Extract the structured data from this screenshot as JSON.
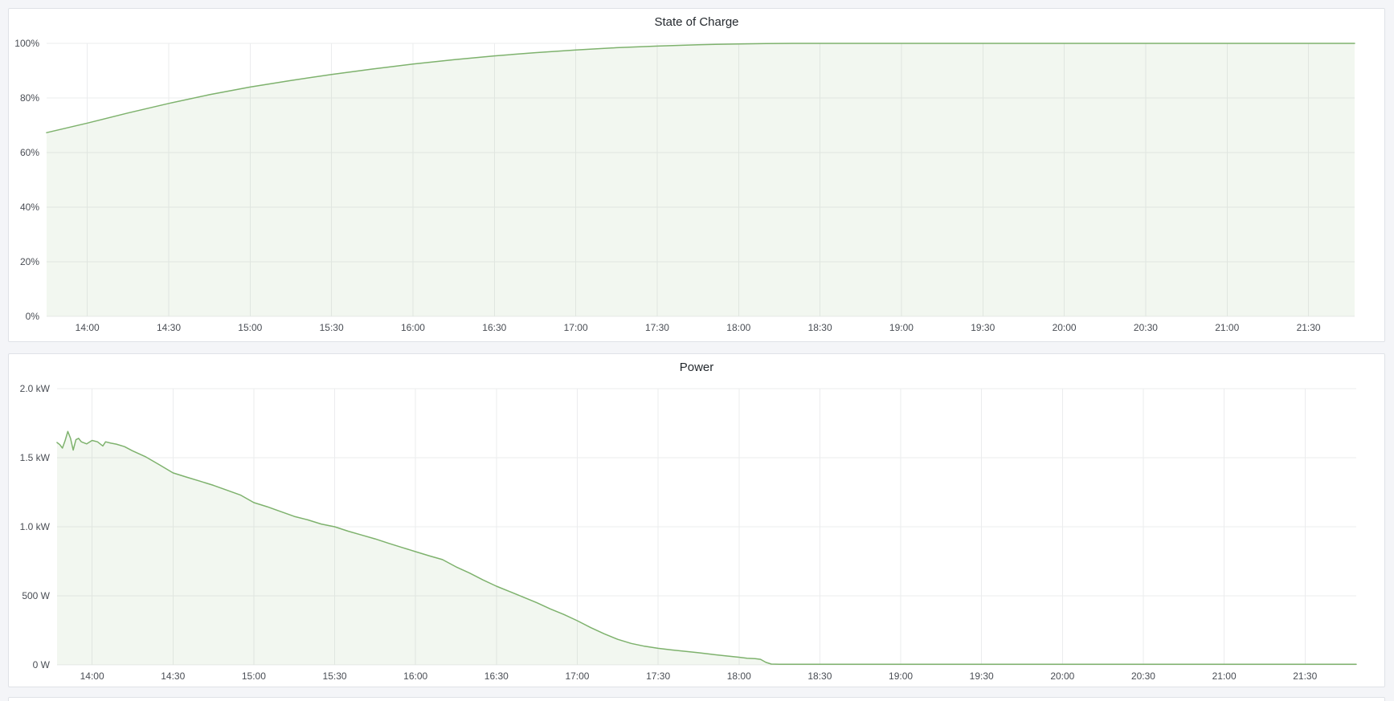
{
  "colors": {
    "series_green": "#7eb26d",
    "page_background": "#f4f5f8",
    "panel_background": "#ffffff",
    "panel_border": "#dfe2e7",
    "grid_line": "#ebecee",
    "tick_text": "#494d54",
    "title_text": "#24292e"
  },
  "chart_data": [
    {
      "type": "area",
      "title": "State of Charge",
      "xlabel": "",
      "ylabel": "",
      "x_range": [
        "13:45",
        "21:47"
      ],
      "ylim": [
        0,
        100
      ],
      "grid": true,
      "legend_position": "none",
      "x_ticks": [
        "14:00",
        "14:30",
        "15:00",
        "15:30",
        "16:00",
        "16:30",
        "17:00",
        "17:30",
        "18:00",
        "18:30",
        "19:00",
        "19:30",
        "20:00",
        "20:30",
        "21:00",
        "21:30"
      ],
      "y_ticks": [
        {
          "label": "0%",
          "value": 0
        },
        {
          "label": "20%",
          "value": 20
        },
        {
          "label": "40%",
          "value": 40
        },
        {
          "label": "60%",
          "value": 60
        },
        {
          "label": "80%",
          "value": 80
        },
        {
          "label": "100%",
          "value": 100
        }
      ],
      "series": [
        {
          "name": "State of Charge",
          "color": "#7eb26d",
          "fill_opacity": 0.1,
          "points": [
            [
              "13:45",
              67.3
            ],
            [
              "14:00",
              70.8
            ],
            [
              "14:15",
              74.5
            ],
            [
              "14:30",
              78.0
            ],
            [
              "14:45",
              81.2
            ],
            [
              "15:00",
              84.0
            ],
            [
              "15:15",
              86.4
            ],
            [
              "15:30",
              88.6
            ],
            [
              "15:45",
              90.6
            ],
            [
              "16:00",
              92.4
            ],
            [
              "16:15",
              94.0
            ],
            [
              "16:30",
              95.4
            ],
            [
              "16:45",
              96.6
            ],
            [
              "17:00",
              97.6
            ],
            [
              "17:15",
              98.4
            ],
            [
              "17:30",
              99.0
            ],
            [
              "17:45",
              99.5
            ],
            [
              "18:00",
              99.8
            ],
            [
              "18:10",
              99.9
            ],
            [
              "18:20",
              100
            ],
            [
              "19:00",
              100
            ],
            [
              "20:00",
              100
            ],
            [
              "21:00",
              100
            ],
            [
              "21:47",
              100
            ]
          ]
        }
      ]
    },
    {
      "type": "area",
      "title": "Power",
      "xlabel": "",
      "ylabel": "",
      "x_range": [
        "13:47",
        "21:49"
      ],
      "ylim": [
        0,
        2000
      ],
      "grid": true,
      "legend_position": "none",
      "x_ticks": [
        "14:00",
        "14:30",
        "15:00",
        "15:30",
        "16:00",
        "16:30",
        "17:00",
        "17:30",
        "18:00",
        "18:30",
        "19:00",
        "19:30",
        "20:00",
        "20:30",
        "21:00",
        "21:30"
      ],
      "y_ticks": [
        {
          "label": "0 W",
          "value": 0
        },
        {
          "label": "500 W",
          "value": 500
        },
        {
          "label": "1.0 kW",
          "value": 1000
        },
        {
          "label": "1.5 kW",
          "value": 1500
        },
        {
          "label": "2.0 kW",
          "value": 2000
        }
      ],
      "series": [
        {
          "name": "Power",
          "color": "#7eb26d",
          "fill_opacity": 0.1,
          "points": [
            [
              "13:47",
              1610
            ],
            [
              "13:48",
              1595
            ],
            [
              "13:49",
              1570
            ],
            [
              "13:50",
              1625
            ],
            [
              "13:51",
              1690
            ],
            [
              "13:52",
              1640
            ],
            [
              "13:53",
              1555
            ],
            [
              "13:54",
              1630
            ],
            [
              "13:55",
              1640
            ],
            [
              "13:56",
              1615
            ],
            [
              "13:58",
              1600
            ],
            [
              "14:00",
              1625
            ],
            [
              "14:02",
              1615
            ],
            [
              "14:04",
              1585
            ],
            [
              "14:05",
              1615
            ],
            [
              "14:07",
              1605
            ],
            [
              "14:09",
              1598
            ],
            [
              "14:12",
              1580
            ],
            [
              "14:15",
              1550
            ],
            [
              "14:20",
              1505
            ],
            [
              "14:25",
              1448
            ],
            [
              "14:30",
              1390
            ],
            [
              "14:35",
              1360
            ],
            [
              "14:40",
              1330
            ],
            [
              "14:45",
              1300
            ],
            [
              "14:50",
              1265
            ],
            [
              "14:55",
              1230
            ],
            [
              "15:00",
              1175
            ],
            [
              "15:05",
              1145
            ],
            [
              "15:10",
              1110
            ],
            [
              "15:15",
              1075
            ],
            [
              "15:20",
              1050
            ],
            [
              "15:25",
              1020
            ],
            [
              "15:30",
              1000
            ],
            [
              "15:35",
              968
            ],
            [
              "15:40",
              940
            ],
            [
              "15:45",
              912
            ],
            [
              "15:50",
              880
            ],
            [
              "15:55",
              850
            ],
            [
              "16:00",
              820
            ],
            [
              "16:05",
              790
            ],
            [
              "16:10",
              762
            ],
            [
              "16:15",
              710
            ],
            [
              "16:20",
              665
            ],
            [
              "16:25",
              615
            ],
            [
              "16:30",
              570
            ],
            [
              "16:35",
              530
            ],
            [
              "16:40",
              490
            ],
            [
              "16:45",
              450
            ],
            [
              "16:50",
              405
            ],
            [
              "16:55",
              365
            ],
            [
              "17:00",
              320
            ],
            [
              "17:05",
              270
            ],
            [
              "17:10",
              225
            ],
            [
              "17:15",
              185
            ],
            [
              "17:20",
              155
            ],
            [
              "17:25",
              135
            ],
            [
              "17:30",
              120
            ],
            [
              "17:35",
              108
            ],
            [
              "17:40",
              98
            ],
            [
              "17:45",
              88
            ],
            [
              "17:50",
              76
            ],
            [
              "17:55",
              65
            ],
            [
              "18:00",
              55
            ],
            [
              "18:03",
              48
            ],
            [
              "18:06",
              45
            ],
            [
              "18:08",
              40
            ],
            [
              "18:10",
              18
            ],
            [
              "18:12",
              6
            ],
            [
              "18:15",
              4
            ],
            [
              "19:00",
              4
            ],
            [
              "20:00",
              4
            ],
            [
              "21:00",
              4
            ],
            [
              "21:49",
              4
            ]
          ]
        }
      ]
    }
  ]
}
